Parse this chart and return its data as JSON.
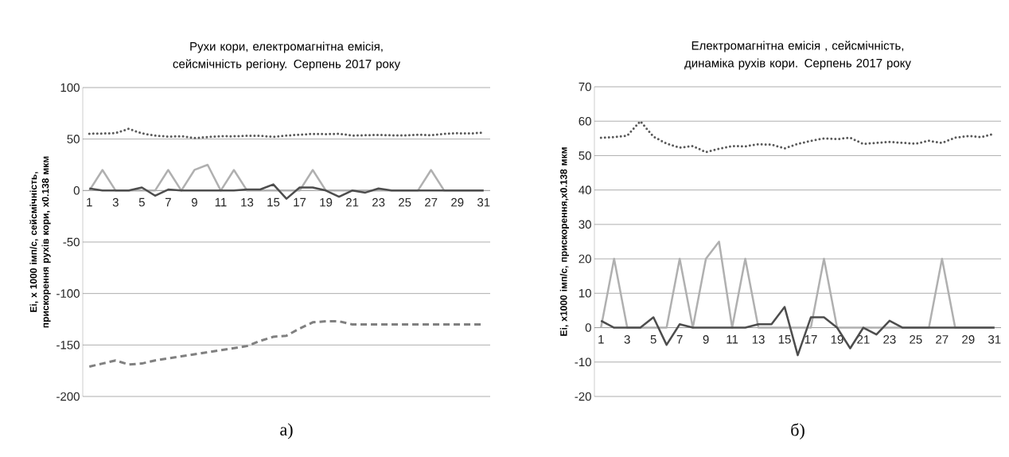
{
  "chart_data": [
    {
      "type": "line",
      "title": "Рухи кори, електромагнітна емісія, сейсмічність регіону. Серпень 2017 року",
      "ylabel": "Ei, х 1000 імп/с, сейсмічність, прискорення рухів кори, х0.138 мкм",
      "annotations": [
        "а)"
      ],
      "categories": [
        "1",
        null,
        "3",
        null,
        "5",
        null,
        "7",
        null,
        "9",
        null,
        "11",
        null,
        "13",
        null,
        "15",
        null,
        "17",
        null,
        "19",
        null,
        "21",
        null,
        "23",
        null,
        "25",
        null,
        "27",
        null,
        "29",
        null,
        "31"
      ],
      "ylim": [
        -200,
        100
      ],
      "yticks": [
        -200,
        -150,
        -100,
        -50,
        0,
        50,
        100
      ],
      "grid": "y",
      "series": [
        {
          "color": "#595959",
          "line_style": "dotted",
          "values": [
            55.2,
            55.4,
            55.8,
            60,
            55.5,
            53.5,
            52.3,
            52.8,
            51,
            52,
            52.8,
            52.7,
            53.3,
            53.2,
            52.1,
            53.4,
            54.3,
            55,
            54.8,
            55.2,
            53.4,
            53.7,
            54,
            53.7,
            53.5,
            54.3,
            53.7,
            55.2,
            55.7,
            55.4,
            56.4
          ]
        },
        {
          "color": "#b0b0b0",
          "line_style": "solid",
          "values": [
            0,
            20,
            0,
            0,
            0,
            0,
            20,
            0,
            20,
            25,
            0,
            20,
            0,
            0,
            0,
            0,
            0,
            20,
            0,
            0,
            0,
            0,
            0,
            0,
            0,
            0,
            20,
            0,
            0,
            0,
            0
          ]
        },
        {
          "color": "#808080",
          "line_style": "dashed",
          "values": [
            -171,
            -168,
            -165,
            -169,
            -168,
            -165,
            -163,
            -161,
            -159,
            -157,
            -155,
            -153,
            -151,
            -146,
            -142,
            -141,
            -134,
            -128,
            -127,
            -127,
            -130,
            -130,
            -130,
            -130,
            -130,
            -130,
            -130,
            -130,
            -130,
            -130,
            -130
          ]
        },
        {
          "color": "#4d4d4d",
          "line_style": "solid",
          "values": [
            2,
            0,
            0,
            0,
            3,
            -5,
            1,
            0,
            0,
            0,
            0,
            0,
            1,
            1,
            6,
            -8,
            3,
            3,
            0,
            -6,
            0,
            -2,
            2,
            0,
            0,
            0,
            0,
            0,
            0,
            0,
            0
          ]
        }
      ]
    },
    {
      "type": "line",
      "title": "Електромагнітна емісія , сейсмічність, динаміка рухів кори. Серпень 2017 року",
      "ylabel": "Ei, х1000 імп/с, прискорення,х0.138 мкм",
      "annotations": [
        "б)"
      ],
      "categories": [
        "1",
        null,
        "3",
        null,
        "5",
        null,
        "7",
        null,
        "9",
        null,
        "11",
        null,
        "13",
        null,
        "15",
        null,
        "17",
        null,
        "19",
        null,
        "21",
        null,
        "23",
        null,
        "25",
        null,
        "27",
        null,
        "29",
        null,
        "31"
      ],
      "ylim": [
        -20,
        70
      ],
      "yticks": [
        -20,
        -10,
        0,
        10,
        20,
        30,
        40,
        50,
        60,
        70
      ],
      "grid": "y",
      "series": [
        {
          "color": "#595959",
          "line_style": "dotted",
          "values": [
            55.2,
            55.4,
            55.8,
            60,
            55.5,
            53.5,
            52.3,
            52.8,
            51,
            52,
            52.8,
            52.7,
            53.3,
            53.2,
            52.1,
            53.4,
            54.3,
            55,
            54.8,
            55.2,
            53.4,
            53.7,
            54,
            53.7,
            53.5,
            54.3,
            53.7,
            55.2,
            55.7,
            55.4,
            56.4
          ]
        },
        {
          "color": "#b0b0b0",
          "line_style": "solid",
          "values": [
            0,
            20,
            0,
            0,
            0,
            0,
            20,
            0,
            20,
            25,
            0,
            20,
            0,
            0,
            0,
            0,
            0,
            20,
            0,
            0,
            0,
            0,
            0,
            0,
            0,
            0,
            20,
            0,
            0,
            0,
            0
          ]
        },
        {
          "color": "#4d4d4d",
          "line_style": "solid",
          "values": [
            2,
            0,
            0,
            0,
            3,
            -5,
            1,
            0,
            0,
            0,
            0,
            0,
            1,
            1,
            6,
            -8,
            3,
            3,
            0,
            -6,
            0,
            -2,
            2,
            0,
            0,
            0,
            0,
            0,
            0,
            0,
            0
          ]
        }
      ]
    }
  ]
}
